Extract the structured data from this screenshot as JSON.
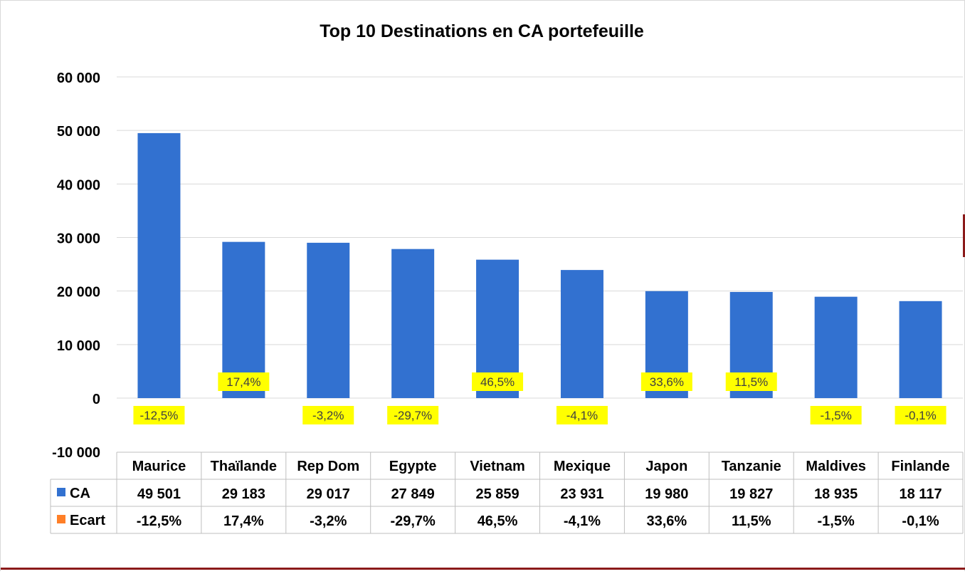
{
  "chart_data": {
    "type": "bar",
    "title": "Top 10 Destinations en CA portefeuille",
    "categories": [
      "Maurice",
      "Thaïlande",
      "Rep Dom",
      "Egypte",
      "Vietnam",
      "Mexique",
      "Japon",
      "Tanzanie",
      "Maldives",
      "Finlande"
    ],
    "series": [
      {
        "name": "CA",
        "color": "#3271d0",
        "values": [
          49501,
          29183,
          29017,
          27849,
          25859,
          23931,
          19980,
          19827,
          18935,
          18117
        ],
        "display": [
          "49 501",
          "29 183",
          "29 017",
          "27 849",
          "25 859",
          "23 931",
          "19 980",
          "19 827",
          "18 935",
          "18 117"
        ]
      },
      {
        "name": "Ecart",
        "color": "#ff7f27",
        "values": [
          -12.5,
          17.4,
          -3.2,
          -29.7,
          46.5,
          -4.1,
          33.6,
          11.5,
          -1.5,
          -0.1
        ],
        "display": [
          "-12,5%",
          "17,4%",
          "-3,2%",
          "-29,7%",
          "46,5%",
          "-4,1%",
          "33,6%",
          "11,5%",
          "-1,5%",
          "-0,1%"
        ]
      }
    ],
    "ylim": [
      -10000,
      60000
    ],
    "yticks": [
      60000,
      50000,
      40000,
      30000,
      20000,
      10000,
      0,
      -10000
    ],
    "ytick_labels": [
      "60 000",
      "50 000",
      "40 000",
      "30 000",
      "20 000",
      "10 000",
      "0",
      "-10 000"
    ],
    "grid": true,
    "data_table": true,
    "label_highlight_color": "#ffff00"
  }
}
